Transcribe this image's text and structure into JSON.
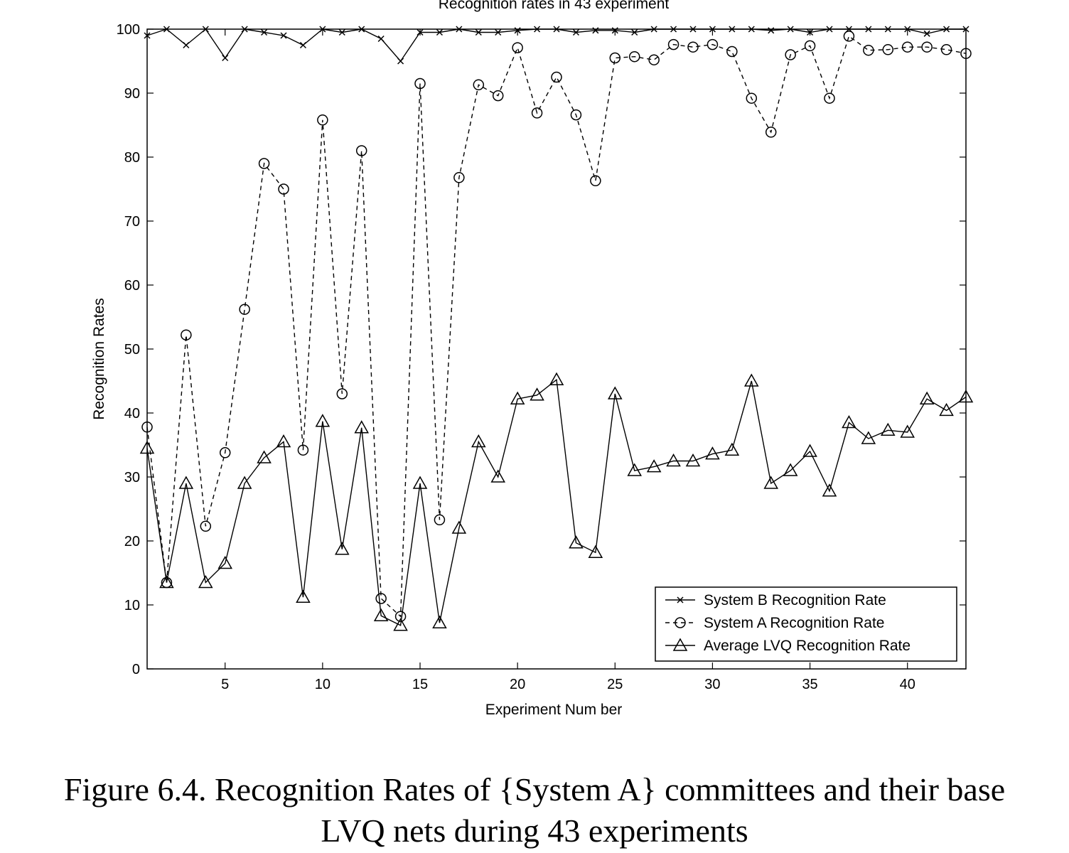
{
  "chart_data": {
    "type": "line",
    "title": "Recognition rates in 43 experiment",
    "xlabel": "Experiment Num ber",
    "ylabel": "Recognition Rates",
    "xlim": [
      1,
      43
    ],
    "ylim": [
      0,
      100
    ],
    "xticks": [
      5,
      10,
      15,
      20,
      25,
      30,
      35,
      40
    ],
    "yticks": [
      0,
      10,
      20,
      30,
      40,
      50,
      60,
      70,
      80,
      90,
      100
    ],
    "grid": false,
    "legend_position": "bottom-right",
    "x": [
      1,
      2,
      3,
      4,
      5,
      6,
      7,
      8,
      9,
      10,
      11,
      12,
      13,
      14,
      15,
      16,
      17,
      18,
      19,
      20,
      21,
      22,
      23,
      24,
      25,
      26,
      27,
      28,
      29,
      30,
      31,
      32,
      33,
      34,
      35,
      36,
      37,
      38,
      39,
      40,
      41,
      42,
      43
    ],
    "series": [
      {
        "name": "System B Recognition Rate",
        "marker": "x",
        "line": "solid",
        "values": [
          99,
          100,
          97.5,
          100,
          95.5,
          100,
          99.5,
          99,
          97.5,
          100,
          99.5,
          100,
          98.5,
          95,
          99.5,
          99.5,
          100,
          99.5,
          99.5,
          99.8,
          100,
          100,
          99.5,
          99.8,
          99.8,
          99.5,
          100,
          100,
          100,
          100,
          100,
          100,
          99.8,
          100,
          99.5,
          100,
          100,
          100,
          100,
          100,
          99.3,
          100,
          100
        ]
      },
      {
        "name": "System A Recognition Rate",
        "marker": "o",
        "line": "dashed",
        "values": [
          37.8,
          13.5,
          52.2,
          22.3,
          33.8,
          56.2,
          79,
          75,
          34.2,
          85.8,
          43,
          81,
          11,
          8.2,
          91.5,
          23.3,
          76.8,
          91.3,
          89.6,
          97.1,
          86.9,
          92.5,
          86.6,
          76.3,
          95.5,
          95.7,
          95.2,
          97.6,
          97.2,
          97.6,
          96.5,
          89.2,
          83.9,
          96,
          97.4,
          89.2,
          98.9,
          96.7,
          96.8,
          97.2,
          97.2,
          96.8,
          96.2
        ]
      },
      {
        "name": "Average LVQ Recognition Rate",
        "marker": "triangle",
        "line": "solid",
        "values": [
          34.5,
          13.5,
          29,
          13.5,
          16.5,
          29,
          33,
          35.5,
          11.2,
          38.7,
          18.7,
          37.7,
          8.3,
          6.8,
          29,
          7.2,
          22,
          35.5,
          30,
          42.2,
          42.8,
          45.2,
          19.7,
          18.2,
          43,
          31,
          31.6,
          32.5,
          32.5,
          33.6,
          34.2,
          45,
          29,
          31,
          34,
          27.8,
          38.5,
          36,
          37.3,
          37,
          42.2,
          40.4,
          42.5
        ]
      }
    ]
  },
  "caption": {
    "line1": "Figure 6.4. Recognition Rates of {System A} committees and their base",
    "line2": "LVQ nets during 43 experiments"
  }
}
